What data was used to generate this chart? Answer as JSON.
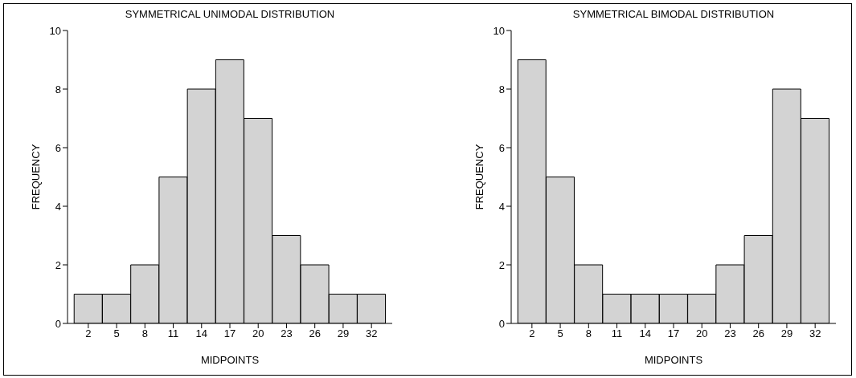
{
  "chart_data": [
    {
      "type": "histogram",
      "title": "SYMMETRICAL UNIMODAL DISTRIBUTION",
      "xlabel": "MIDPOINTS",
      "ylabel": "FREQUENCY",
      "bins": [
        0.5,
        3.5,
        6.5,
        9.5,
        12.5,
        15.5,
        18.5,
        21.5,
        24.5,
        27.5,
        30.5,
        33.5
      ],
      "values": [
        1,
        1,
        2,
        5,
        8,
        9,
        7,
        3,
        2,
        1,
        1
      ],
      "color": "#d3d3d3",
      "xlim": [
        -0.2,
        34.2
      ],
      "xticks": [
        2,
        5,
        8,
        11,
        14,
        17,
        20,
        23,
        26,
        29,
        32
      ],
      "ylim": [
        0,
        10
      ],
      "yticks": [
        0,
        2,
        4,
        6,
        8,
        10
      ]
    },
    {
      "type": "histogram",
      "title": "SYMMETRICAL BIMODAL DISTRIBUTION",
      "xlabel": "MIDPOINTS",
      "ylabel": "FREQUENCY",
      "bins": [
        0.5,
        3.5,
        6.5,
        9.5,
        12.5,
        15.5,
        18.5,
        21.5,
        24.5,
        27.5,
        30.5,
        33.5
      ],
      "values": [
        9,
        5,
        2,
        1,
        1,
        1,
        1,
        2,
        3,
        8,
        7
      ],
      "color": "#d3d3d3",
      "xlim": [
        -0.2,
        34.2
      ],
      "xticks": [
        2,
        5,
        8,
        11,
        14,
        17,
        20,
        23,
        26,
        29,
        32
      ],
      "ylim": [
        0,
        10
      ],
      "yticks": [
        0,
        2,
        4,
        6,
        8,
        10
      ]
    }
  ]
}
